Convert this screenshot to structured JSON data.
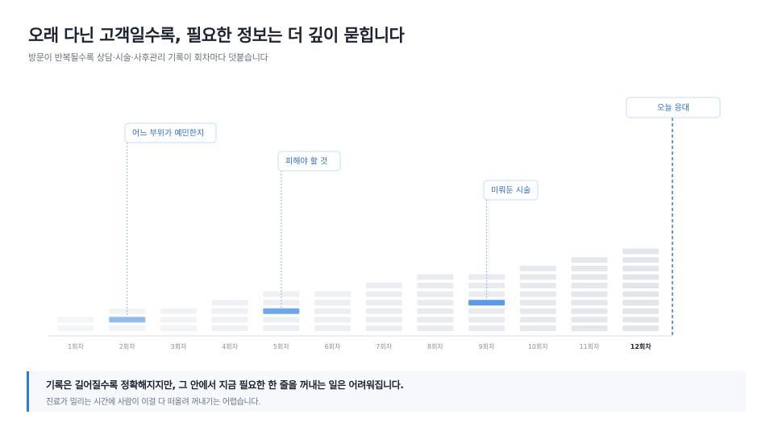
{
  "header": {
    "title": "오래 다닌 고객일수록, 필요한 정보는 더 깊이 묻힙니다",
    "subtitle": "방문이 반복될수록 상담·시술·사후관리 기록이 회차마다 덧붙습니다"
  },
  "chart_data": {
    "type": "stacked-records",
    "categories": [
      "1회차",
      "2회차",
      "3회차",
      "4회차",
      "5회차",
      "6회차",
      "7회차",
      "8회차",
      "9회차",
      "10회차",
      "11회차",
      "12회차"
    ],
    "record_counts": [
      2,
      3,
      3,
      4,
      5,
      5,
      6,
      7,
      7,
      8,
      9,
      10
    ],
    "current_category": "12회차",
    "highlights": [
      {
        "category": "2회차",
        "level": 2,
        "label": "어느 부위가 예민한지"
      },
      {
        "category": "5회차",
        "level": 3,
        "label": "피해야 할 것"
      },
      {
        "category": "9회차",
        "level": 4,
        "label": "미뤄둔 시술"
      }
    ],
    "today_label": "오늘 응대"
  },
  "colors": {
    "accent": "#2a7be4",
    "highlight_2": "#8fbcf2",
    "highlight_5": "#6ca6ee",
    "highlight_9": "#5a9aee",
    "record_light": "#f1f3f5",
    "record_dark": "#e4e7eb"
  },
  "footer": {
    "main": "기록은 길어질수록 정확해지지만, 그 안에서 지금 필요한 한 줄을 꺼내는 일은 어려워집니다.",
    "sub": "진료가 밀리는 시간에 사람이 이걸 다 떠올려 꺼내기는 어렵습니다."
  }
}
